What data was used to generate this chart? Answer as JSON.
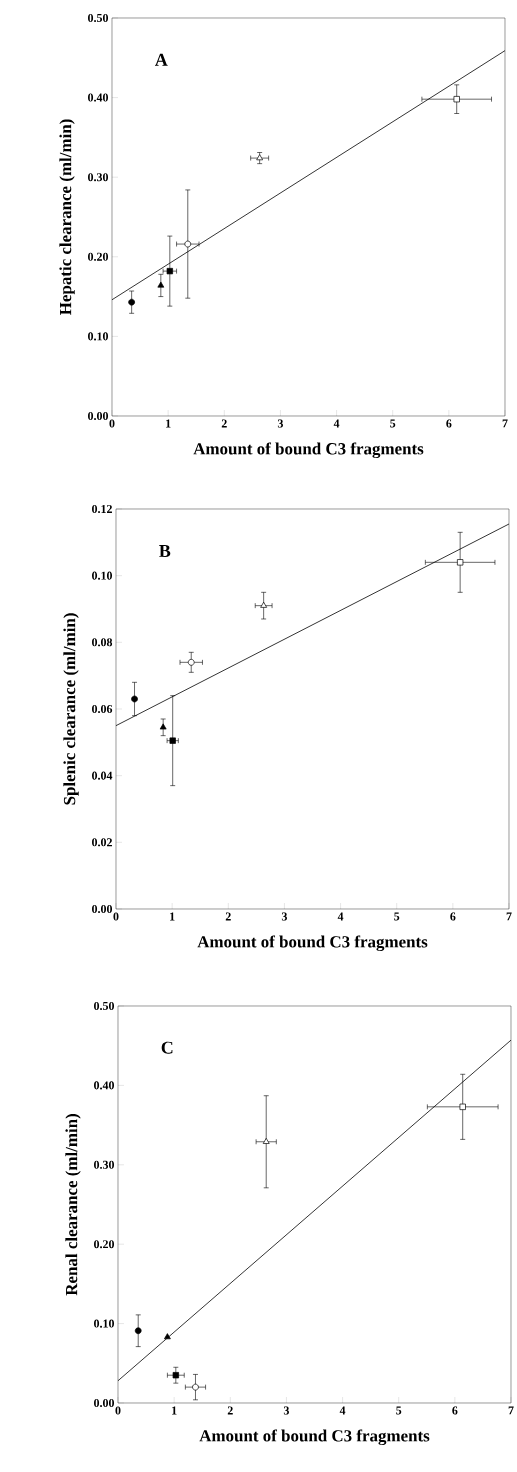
{
  "chart_data": [
    {
      "type": "scatter",
      "title": "A",
      "xlabel": "Amount of bound C3 fragments",
      "ylabel": "Hepatic clearance (ml/min)",
      "xlim": [
        0,
        7
      ],
      "ylim": [
        0,
        0.5
      ],
      "xticks": [
        0,
        1,
        2,
        3,
        4,
        5,
        6,
        7
      ],
      "yticks": [
        {
          "value": 0,
          "label": "0.00"
        },
        {
          "value": 0.1,
          "label": "0.10"
        },
        {
          "value": 0.2,
          "label": "0.20"
        },
        {
          "value": 0.3,
          "label": "0.30"
        },
        {
          "value": 0.4,
          "label": "0.40"
        },
        {
          "value": 0.5,
          "label": "0.50"
        }
      ],
      "grid": false,
      "series": [
        {
          "type": "line",
          "color": "#000000",
          "marker": "none",
          "x": [
            0,
            7
          ],
          "values": [
            0.146,
            0.459
          ]
        },
        {
          "marker": "circle",
          "color": "#000000",
          "x": [
            0.35
          ],
          "values": [
            0.143
          ],
          "errors": [
            0.014
          ]
        },
        {
          "marker": "triangle",
          "color": "#000000",
          "x": [
            0.87
          ],
          "values": [
            0.164
          ],
          "errors": [
            0.014
          ]
        },
        {
          "marker": "square",
          "color": "#000000",
          "x": [
            1.03
          ],
          "values": [
            0.182
          ],
          "errors": [
            0.044
          ],
          "xerrors": [
            0.12
          ]
        },
        {
          "marker": "circle",
          "color": "#ffffff",
          "x": [
            1.35
          ],
          "values": [
            0.216
          ],
          "errors": [
            0.068
          ],
          "xerrors": [
            0.2
          ]
        },
        {
          "marker": "triangle",
          "color": "#ffffff",
          "x": [
            2.63
          ],
          "values": [
            0.324
          ],
          "errors": [
            0.007
          ],
          "xerrors": [
            0.16
          ]
        },
        {
          "marker": "square",
          "color": "#ffffff",
          "x": [
            6.14
          ],
          "values": [
            0.398
          ],
          "errors": [
            0.018
          ],
          "xerrors": [
            0.62
          ]
        }
      ]
    },
    {
      "type": "scatter",
      "title": "B",
      "xlabel": "Amount of bound C3 fragments",
      "ylabel": "Splenic clearance (ml/min)",
      "xlim": [
        0,
        7
      ],
      "ylim": [
        0,
        0.12
      ],
      "xticks": [
        0,
        1,
        2,
        3,
        4,
        5,
        6,
        7
      ],
      "yticks": [
        {
          "value": 0,
          "label": "0.00"
        },
        {
          "value": 0.02,
          "label": "0.02"
        },
        {
          "value": 0.04,
          "label": "0.04"
        },
        {
          "value": 0.06,
          "label": "0.06"
        },
        {
          "value": 0.08,
          "label": "0.08"
        },
        {
          "value": 0.1,
          "label": "0.10"
        },
        {
          "value": 0.12,
          "label": "0.12"
        }
      ],
      "grid": false,
      "series": [
        {
          "type": "line",
          "color": "#000000",
          "marker": "none",
          "x": [
            0,
            7
          ],
          "values": [
            0.055,
            0.1155
          ]
        },
        {
          "marker": "circle",
          "color": "#000000",
          "x": [
            0.33
          ],
          "values": [
            0.063
          ],
          "errors": [
            0.005
          ]
        },
        {
          "marker": "triangle",
          "color": "#000000",
          "x": [
            0.84
          ],
          "values": [
            0.0545
          ],
          "errors": [
            0.0025
          ]
        },
        {
          "marker": "square",
          "color": "#000000",
          "x": [
            1.01
          ],
          "values": [
            0.0505
          ],
          "errors": [
            0.0135
          ],
          "xerrors": [
            0.1
          ]
        },
        {
          "marker": "circle",
          "color": "#ffffff",
          "x": [
            1.34
          ],
          "values": [
            0.074
          ],
          "errors": [
            0.003
          ],
          "xerrors": [
            0.2
          ]
        },
        {
          "marker": "triangle",
          "color": "#ffffff",
          "x": [
            2.63
          ],
          "values": [
            0.091
          ],
          "errors": [
            0.004
          ],
          "xerrors": [
            0.15
          ]
        },
        {
          "marker": "square",
          "color": "#ffffff",
          "x": [
            6.13
          ],
          "values": [
            0.104
          ],
          "errors": [
            0.009
          ],
          "xerrors": [
            0.62
          ]
        }
      ]
    },
    {
      "type": "scatter",
      "title": "C",
      "xlabel": "Amount of bound C3 fragments",
      "ylabel": "Renal clearance (ml/min)",
      "xlim": [
        0,
        7
      ],
      "ylim": [
        0,
        0.5
      ],
      "xticks": [
        0,
        1,
        2,
        3,
        4,
        5,
        6,
        7
      ],
      "yticks": [
        {
          "value": 0,
          "label": "0.00"
        },
        {
          "value": 0.1,
          "label": "0.10"
        },
        {
          "value": 0.2,
          "label": "0.20"
        },
        {
          "value": 0.3,
          "label": "0.30"
        },
        {
          "value": 0.4,
          "label": "0.40"
        },
        {
          "value": 0.5,
          "label": "0.50"
        }
      ],
      "grid": false,
      "series": [
        {
          "type": "line",
          "color": "#000000",
          "marker": "none",
          "x": [
            0,
            7
          ],
          "values": [
            0.028,
            0.457
          ]
        },
        {
          "marker": "circle",
          "color": "#000000",
          "x": [
            0.36
          ],
          "values": [
            0.091
          ],
          "errors": [
            0.02
          ]
        },
        {
          "marker": "triangle",
          "color": "#000000",
          "x": [
            0.88
          ],
          "values": [
            0.083
          ]
        },
        {
          "marker": "square",
          "color": "#000000",
          "x": [
            1.03
          ],
          "values": [
            0.035
          ],
          "errors": [
            0.01
          ],
          "xerrors": [
            0.15
          ]
        },
        {
          "marker": "circle",
          "color": "#ffffff",
          "x": [
            1.38
          ],
          "values": [
            0.02
          ],
          "errors": [
            0.016
          ],
          "xerrors": [
            0.18
          ]
        },
        {
          "marker": "triangle",
          "color": "#ffffff",
          "x": [
            2.64
          ],
          "values": [
            0.329
          ],
          "errors": [
            0.058
          ],
          "xerrors": [
            0.18
          ]
        },
        {
          "marker": "square",
          "color": "#ffffff",
          "x": [
            6.14
          ],
          "values": [
            0.373
          ],
          "errors": [
            0.041
          ],
          "xerrors": [
            0.63
          ]
        }
      ]
    }
  ]
}
